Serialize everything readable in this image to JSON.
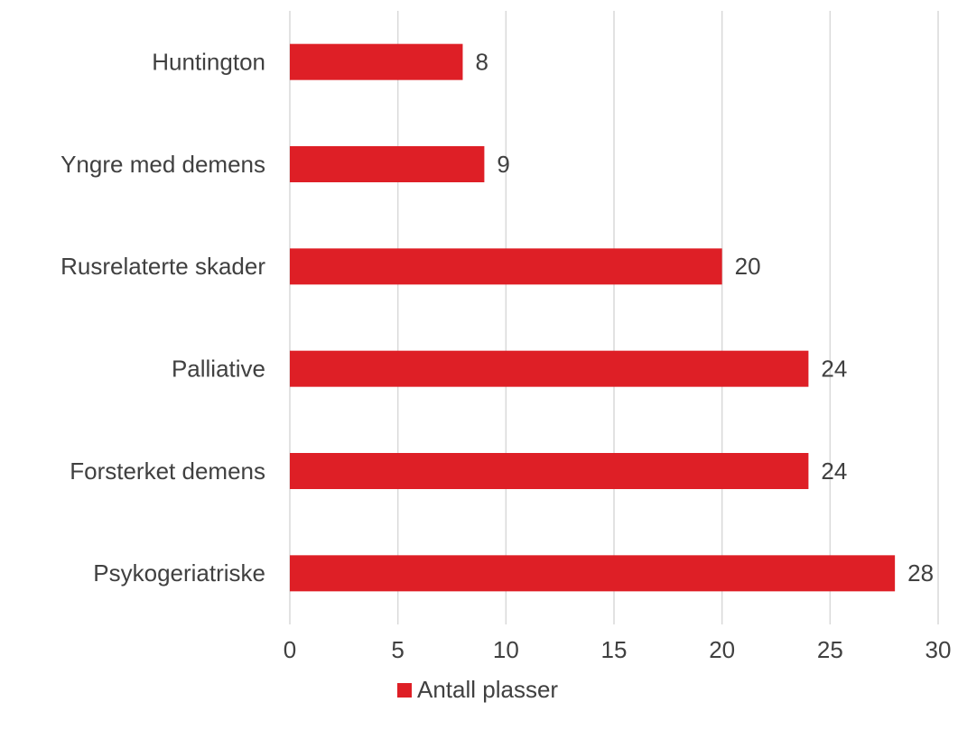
{
  "chart_data": {
    "type": "barh",
    "categories": [
      "Huntington",
      "Yngre med demens",
      "Rusrelaterte skader",
      "Palliative",
      "Forsterket demens",
      "Psykogeriatriske"
    ],
    "series": [
      {
        "name": "Antall plasser",
        "color": "#de1f26",
        "values": [
          8,
          9,
          20,
          24,
          24,
          28
        ]
      }
    ],
    "xlim": [
      0,
      30
    ],
    "xticks": [
      0,
      5,
      10,
      15,
      20,
      25,
      30
    ],
    "grid": true,
    "legend": "bottom"
  }
}
